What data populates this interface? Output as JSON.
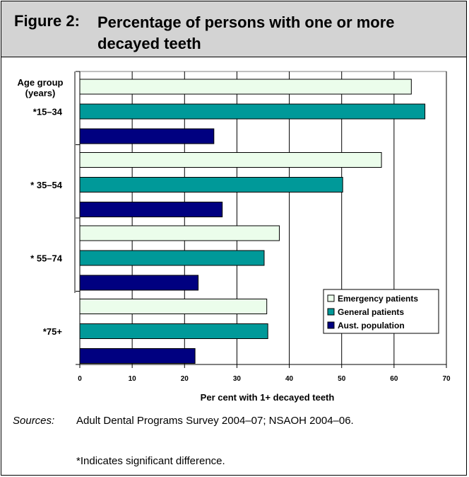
{
  "figure": {
    "title_prefix": "Figure 2:",
    "title": "Percentage of persons with one or more decayed teeth",
    "sources_label": "Sources:",
    "sources": "Adult Dental Programs Survey 2004–07; NSAOH 2004–06.",
    "footnote": "*Indicates significant difference."
  },
  "chart_data": {
    "type": "bar",
    "orientation": "horizontal",
    "ylabel": "Age group\n(years)",
    "xlabel": "Per cent with 1+ decayed teeth",
    "xlim": [
      0,
      70
    ],
    "xticks": [
      0,
      10,
      20,
      30,
      40,
      50,
      60,
      70
    ],
    "grid": true,
    "legend_position": "bottom-right",
    "categories": [
      "*15–34",
      "* 35–54",
      "* 55–74",
      "*75+"
    ],
    "series": [
      {
        "name": "Emergency patients",
        "color": "#ebfdeb",
        "values": [
          63.3,
          57.6,
          38.1,
          35.7
        ]
      },
      {
        "name": "General patients",
        "color": "#009999",
        "values": [
          65.9,
          50.2,
          35.2,
          35.9
        ]
      },
      {
        "name": "Aust. population",
        "color": "#000080",
        "values": [
          25.6,
          27.2,
          22.6,
          22.0
        ]
      }
    ]
  }
}
